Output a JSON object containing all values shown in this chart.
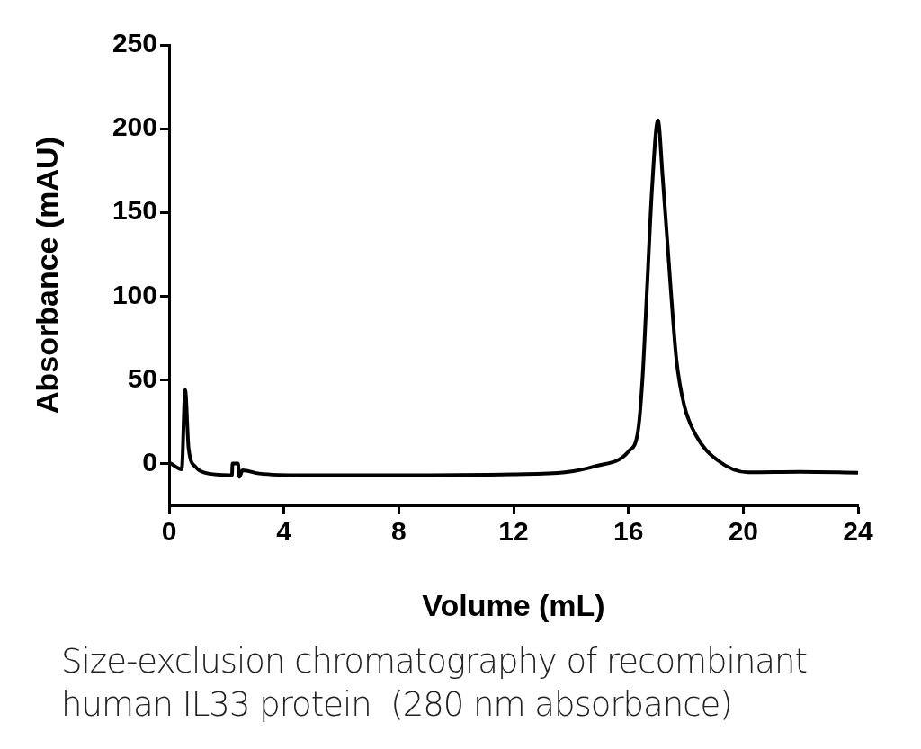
{
  "chart_data": {
    "type": "line",
    "xlabel": "Volume (mL)",
    "ylabel": "Absorbance (mAU)",
    "annotations": [
      "Size-exclusion chromatography of recombinant human IL33 protein  (280 nm absorbance)"
    ],
    "series": [
      {
        "color": "#000000",
        "x": [
          0.06,
          0.44,
          0.56,
          0.68,
          0.92,
          1.23,
          2.19,
          2.21,
          2.4,
          2.45,
          2.56,
          3.14,
          4.74,
          8,
          12,
          13.79,
          14.85,
          16.02,
          16.34,
          16.5,
          16.66,
          16.82,
          17.03,
          17.19,
          17.46,
          17.67,
          17.94,
          18.36,
          19.1,
          20.17,
          22,
          24
        ],
        "values": [
          0,
          -3.5,
          44,
          9,
          -2,
          -5.5,
          -7,
          0,
          0,
          -8,
          -4,
          -6,
          -7,
          -7,
          -6.5,
          -5.3,
          -1.6,
          7.5,
          20,
          53,
          108,
          163,
          205,
          172,
          108,
          62.5,
          35,
          16.6,
          2,
          -5.3,
          -5,
          -5.5
        ]
      }
    ],
    "xlim": [
      0,
      24
    ],
    "xticks": [
      0,
      4,
      8,
      12,
      16,
      20,
      24
    ],
    "ylim": [
      -25,
      250
    ],
    "yticks": [
      0,
      50,
      100,
      150,
      200,
      250
    ],
    "grid": false,
    "legend": false,
    "marker": "none",
    "line_style": "solid"
  }
}
